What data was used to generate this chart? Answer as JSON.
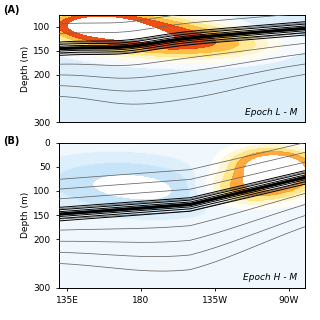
{
  "panel_A_label": "Epoch L - M",
  "panel_B_label": "Epoch H - M",
  "xlabel_ticks": [
    135,
    180,
    225,
    270
  ],
  "xlabel_labels": [
    "135E",
    "180",
    "135W",
    "90W"
  ],
  "xlim": [
    130,
    280
  ],
  "ylim_A": [
    300,
    75
  ],
  "ylim_B": [
    300,
    0
  ],
  "background_color": "#ffffff"
}
